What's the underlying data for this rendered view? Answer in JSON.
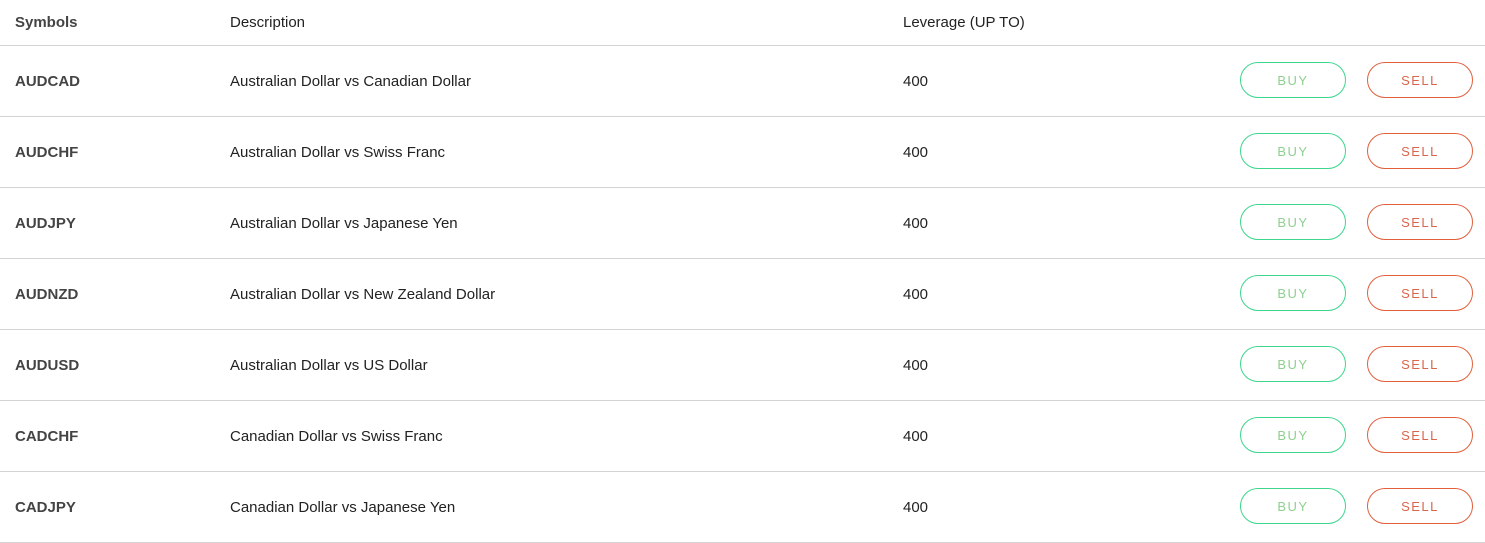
{
  "header": {
    "symbols": "Symbols",
    "description": "Description",
    "leverage": "Leverage (UP TO)"
  },
  "buttons": {
    "buy": "BUY",
    "sell": "SELL"
  },
  "colors": {
    "buy": "#3dd68c",
    "sell": "#e0603e"
  },
  "rows": [
    {
      "symbol": "AUDCAD",
      "description": "Australian Dollar vs Canadian Dollar",
      "leverage": "400"
    },
    {
      "symbol": "AUDCHF",
      "description": "Australian Dollar vs Swiss Franc",
      "leverage": "400"
    },
    {
      "symbol": "AUDJPY",
      "description": "Australian Dollar vs Japanese Yen",
      "leverage": "400"
    },
    {
      "symbol": "AUDNZD",
      "description": "Australian Dollar vs New Zealand Dollar",
      "leverage": "400"
    },
    {
      "symbol": "AUDUSD",
      "description": "Australian Dollar vs US Dollar",
      "leverage": "400"
    },
    {
      "symbol": "CADCHF",
      "description": "Canadian Dollar vs Swiss Franc",
      "leverage": "400"
    },
    {
      "symbol": "CADJPY",
      "description": "Canadian Dollar vs Japanese Yen",
      "leverage": "400"
    }
  ]
}
